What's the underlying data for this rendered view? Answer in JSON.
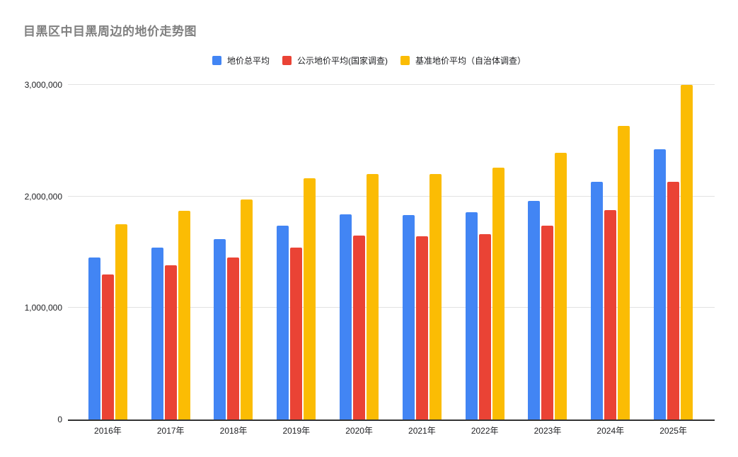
{
  "title": "目黑区中目黑周边的地价走势图",
  "legend": {
    "items": [
      {
        "label": "地价总平均",
        "color": "#4285F4"
      },
      {
        "label": "公示地价平均(国家调查)",
        "color": "#EA4335"
      },
      {
        "label": "基准地价平均（自治体调查）",
        "color": "#FBBC04"
      }
    ]
  },
  "chart_data": {
    "type": "bar",
    "title": "目黑区中目黑周边的地价走势图",
    "categories": [
      "2016年",
      "2017年",
      "2018年",
      "2019年",
      "2020年",
      "2021年",
      "2022年",
      "2023年",
      "2024年",
      "2025年"
    ],
    "series": [
      {
        "name": "地价总平均",
        "color": "#4285F4",
        "values": [
          1450000,
          1540000,
          1620000,
          1740000,
          1840000,
          1830000,
          1860000,
          1960000,
          2130000,
          2420000
        ]
      },
      {
        "name": "公示地价平均(国家调查)",
        "color": "#EA4335",
        "values": [
          1300000,
          1380000,
          1450000,
          1540000,
          1650000,
          1640000,
          1660000,
          1740000,
          1880000,
          2130000
        ]
      },
      {
        "name": "基准地价平均（自治体调查）",
        "color": "#FBBC04",
        "values": [
          1750000,
          1870000,
          1970000,
          2160000,
          2200000,
          2200000,
          2260000,
          2390000,
          2630000,
          3000000
        ]
      }
    ],
    "xlabel": "",
    "ylabel": "",
    "ylim": [
      0,
      3000000
    ],
    "yticks": [
      {
        "value": 0,
        "label": "0"
      },
      {
        "value": 1000000,
        "label": "1,000,000"
      },
      {
        "value": 2000000,
        "label": "2,000,000"
      },
      {
        "value": 3000000,
        "label": "3,000,000"
      }
    ],
    "grid": true,
    "legend_position": "top"
  },
  "colors": {
    "background": "#ffffff",
    "title_text": "#808080",
    "axis_text": "#202124",
    "gridline": "#e2e2e2",
    "axis_line": "#333333",
    "series_blue": "#4285F4",
    "series_red": "#EA4335",
    "series_yellow": "#FBBC04"
  }
}
